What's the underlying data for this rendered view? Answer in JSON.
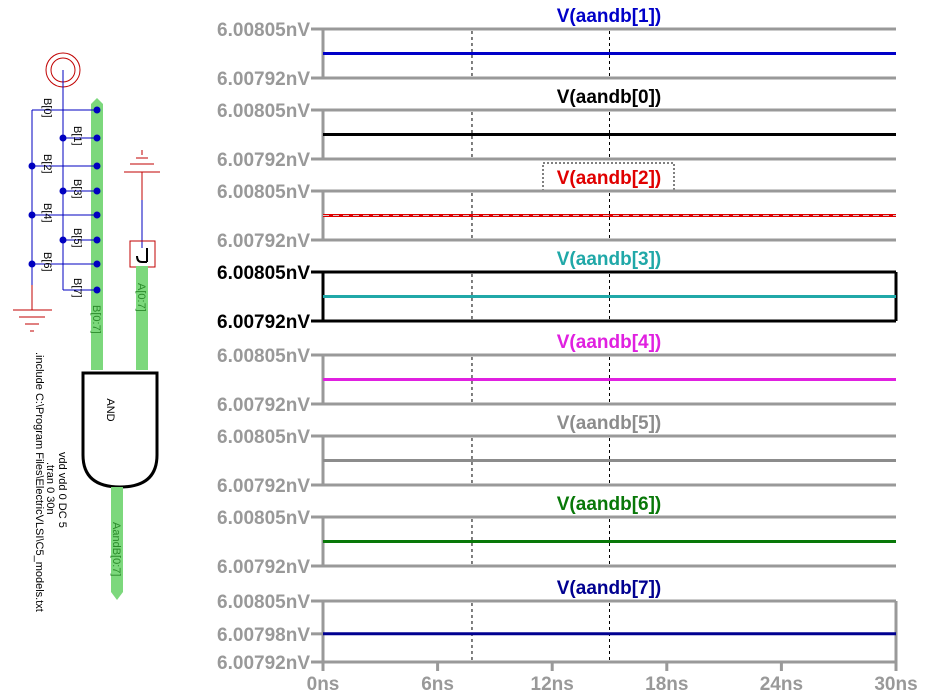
{
  "chart_data": {
    "type": "line",
    "xlabel": "",
    "x_unit": "ns",
    "xlim": [
      0,
      30
    ],
    "x_ticks": [
      "0ns",
      "6ns",
      "12ns",
      "18ns",
      "24ns",
      "30ns"
    ],
    "x_tick_values": [
      0,
      6,
      12,
      18,
      24,
      30
    ],
    "cursors_ns": [
      7.8,
      15
    ],
    "panels": [
      {
        "name": "V(aandb[1])",
        "color": "#0000c8",
        "selected": false,
        "active": false,
        "ylim": [
          6.00792,
          6.00805
        ],
        "y_ticks": [
          "6.00805nV",
          "6.00792nV"
        ],
        "x": [
          0,
          30
        ],
        "values": [
          6.007985,
          6.007985
        ]
      },
      {
        "name": "V(aandb[0])",
        "color": "#000000",
        "selected": false,
        "active": false,
        "ylim": [
          6.00792,
          6.00805
        ],
        "y_ticks": [
          "6.00805nV",
          "6.00792nV"
        ],
        "x": [
          0,
          30
        ],
        "values": [
          6.007985,
          6.007985
        ]
      },
      {
        "name": "V(aandb[2])",
        "color": "#e00000",
        "selected": true,
        "active": false,
        "ylim": [
          6.00792,
          6.00805
        ],
        "y_ticks": [
          "6.00805nV",
          "6.00792nV"
        ],
        "x": [
          0,
          30
        ],
        "values": [
          6.007985,
          6.007985
        ]
      },
      {
        "name": "V(aandb[3])",
        "color": "#20a8a8",
        "selected": false,
        "active": true,
        "ylim": [
          6.00792,
          6.00805
        ],
        "y_ticks": [
          "6.00805nV",
          "6.00792nV"
        ],
        "x": [
          0,
          30
        ],
        "values": [
          6.007985,
          6.007985
        ]
      },
      {
        "name": "V(aandb[4])",
        "color": "#e020e0",
        "selected": false,
        "active": false,
        "ylim": [
          6.00792,
          6.00805
        ],
        "y_ticks": [
          "6.00805nV",
          "6.00792nV"
        ],
        "x": [
          0,
          30
        ],
        "values": [
          6.007985,
          6.007985
        ]
      },
      {
        "name": "V(aandb[5])",
        "color": "#8c8c8c",
        "selected": false,
        "active": false,
        "ylim": [
          6.00792,
          6.00805
        ],
        "y_ticks": [
          "6.00805nV",
          "6.00792nV"
        ],
        "x": [
          0,
          30
        ],
        "values": [
          6.007985,
          6.007985
        ]
      },
      {
        "name": "V(aandb[6])",
        "color": "#087808",
        "selected": false,
        "active": false,
        "ylim": [
          6.00792,
          6.00805
        ],
        "y_ticks": [
          "6.00805nV",
          "6.00792nV"
        ],
        "x": [
          0,
          30
        ],
        "values": [
          6.007985,
          6.007985
        ]
      },
      {
        "name": "V(aandb[7])",
        "color": "#000090",
        "selected": false,
        "active": false,
        "ylim": [
          6.00792,
          6.00805
        ],
        "y_ticks": [
          "6.00805nV",
          "6.00798nV",
          "6.00792nV"
        ],
        "x": [
          0,
          30
        ],
        "values": [
          6.00798,
          6.00798
        ]
      }
    ]
  },
  "colors": {
    "axis_gray": "#999999",
    "axis_active": "#000000",
    "wire": "#0000c0",
    "power": "#c00000",
    "bus": "#7cd87c"
  },
  "schematic": {
    "labels": {
      "b_nets": [
        "B[0]",
        "B[1]",
        "B[2]",
        "B[3]",
        "B[4]",
        "B[5]",
        "B[6]",
        "B[7]"
      ],
      "bus_b": "B[0:7]",
      "bus_a": "A[0:7]",
      "bus_out": "AandB[0:7]",
      "gate": "AND",
      "spice_lines": [
        "vdd vdd 0 DC 5",
        ".tran 0 30n",
        ".include C:\\Program Files\\ElectricVLSI\\C5_models.txt"
      ]
    }
  }
}
